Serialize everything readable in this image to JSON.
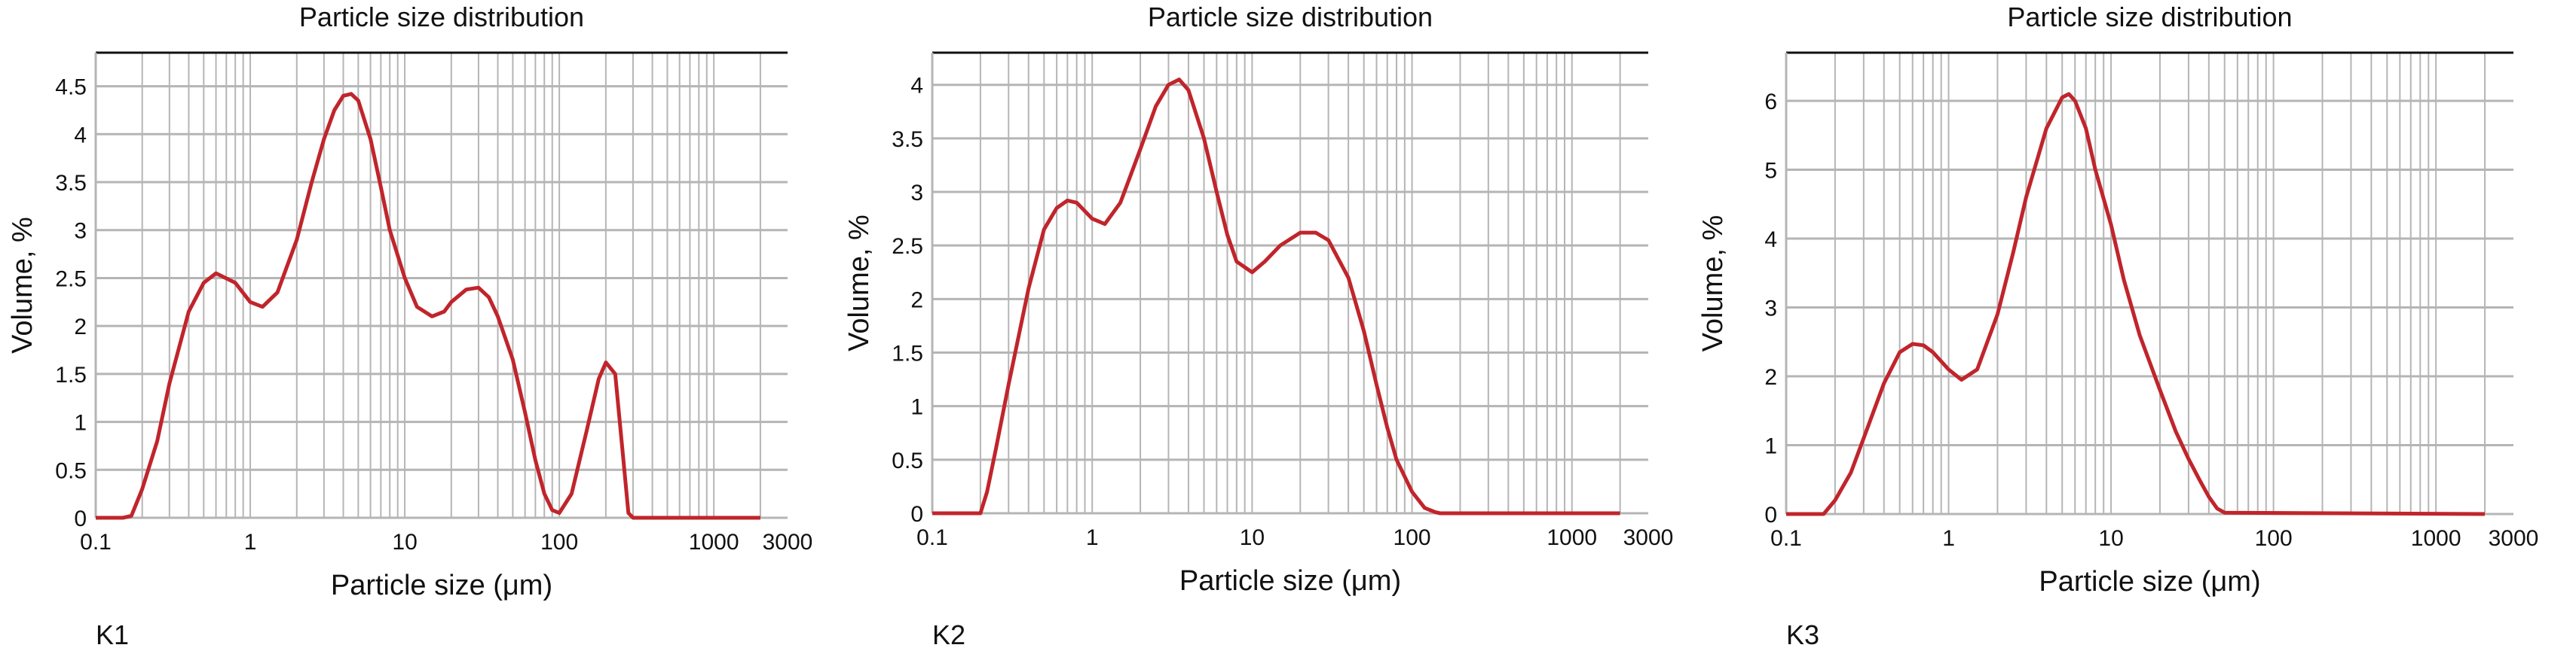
{
  "colors": {
    "series": "#c0252b",
    "grid": "#b5b5b5",
    "frame": "#111111",
    "text": "#111111"
  },
  "chart_data": [
    {
      "type": "line",
      "title": "Particle size distribution",
      "panel_label": "K1",
      "xlabel": "Particle size (μm)",
      "ylabel": "Volume, %",
      "xscale": "log",
      "xlim": [
        0.1,
        3000
      ],
      "ylim": [
        0,
        4.85
      ],
      "xticks": [
        0.1,
        1,
        10,
        100,
        1000,
        3000
      ],
      "xtick_labels": [
        "0.1",
        "1",
        "10",
        "100",
        "1000",
        "3000"
      ],
      "yticks": [
        0,
        0.5,
        1,
        1.5,
        2,
        2.5,
        3,
        3.5,
        4,
        4.5
      ],
      "ytick_labels": [
        "0",
        "0.5",
        "1",
        "1.5",
        "2",
        "2.5",
        "3",
        "3.5",
        "4",
        "4.5"
      ],
      "grid": true,
      "series": [
        {
          "color": "#c0252b",
          "x": [
            0.1,
            0.15,
            0.17,
            0.2,
            0.25,
            0.3,
            0.4,
            0.5,
            0.6,
            0.8,
            1.0,
            1.2,
            1.5,
            2.0,
            2.5,
            3.0,
            3.5,
            4.0,
            4.5,
            5.0,
            6.0,
            7.0,
            8.0,
            10,
            12,
            15,
            18,
            20,
            25,
            30,
            35,
            40,
            50,
            60,
            70,
            80,
            90,
            100,
            120,
            150,
            180,
            200,
            230,
            260,
            280,
            300,
            2000
          ],
          "y": [
            0,
            0,
            0.02,
            0.3,
            0.8,
            1.4,
            2.15,
            2.45,
            2.55,
            2.45,
            2.25,
            2.2,
            2.35,
            2.9,
            3.5,
            3.95,
            4.25,
            4.4,
            4.42,
            4.35,
            3.95,
            3.45,
            3.0,
            2.5,
            2.2,
            2.1,
            2.15,
            2.25,
            2.38,
            2.4,
            2.3,
            2.1,
            1.65,
            1.1,
            0.6,
            0.25,
            0.08,
            0.05,
            0.25,
            0.9,
            1.45,
            1.62,
            1.5,
            0.6,
            0.05,
            0,
            0
          ]
        }
      ]
    },
    {
      "type": "line",
      "title": "Particle size distribution",
      "panel_label": "K2",
      "xlabel": "Particle size (μm)",
      "ylabel": "Volume, %",
      "xscale": "log",
      "xlim": [
        0.1,
        3000
      ],
      "ylim": [
        0,
        4.3
      ],
      "xticks": [
        0.1,
        1,
        10,
        100,
        1000,
        3000
      ],
      "xtick_labels": [
        "0.1",
        "1",
        "10",
        "100",
        "1000",
        "3000"
      ],
      "yticks": [
        0,
        0.5,
        1,
        1.5,
        2,
        2.5,
        3,
        3.5,
        4
      ],
      "ytick_labels": [
        "0",
        "0.5",
        "1",
        "1.5",
        "2",
        "2.5",
        "3",
        "3.5",
        "4"
      ],
      "grid": true,
      "series": [
        {
          "color": "#c0252b",
          "x": [
            0.1,
            0.2,
            0.22,
            0.25,
            0.3,
            0.4,
            0.5,
            0.6,
            0.7,
            0.8,
            1.0,
            1.2,
            1.5,
            2.0,
            2.5,
            3.0,
            3.5,
            4.0,
            5.0,
            6.0,
            7.0,
            8.0,
            10,
            12,
            15,
            20,
            25,
            30,
            40,
            50,
            60,
            70,
            80,
            100,
            120,
            140,
            150,
            160,
            2000
          ],
          "y": [
            0,
            0,
            0.2,
            0.6,
            1.2,
            2.1,
            2.65,
            2.85,
            2.92,
            2.9,
            2.75,
            2.7,
            2.9,
            3.4,
            3.8,
            4.0,
            4.05,
            3.95,
            3.5,
            3.0,
            2.6,
            2.35,
            2.25,
            2.35,
            2.5,
            2.62,
            2.62,
            2.55,
            2.2,
            1.7,
            1.2,
            0.8,
            0.5,
            0.2,
            0.05,
            0.01,
            0,
            0,
            0
          ]
        }
      ]
    },
    {
      "type": "line",
      "title": "Particle size distribution",
      "panel_label": "K3",
      "xlabel": "Particle size (μm)",
      "ylabel": "Volume, %",
      "xscale": "log",
      "xlim": [
        0.1,
        3000
      ],
      "ylim": [
        0,
        6.7
      ],
      "xticks": [
        0.1,
        1,
        10,
        100,
        1000,
        3000
      ],
      "xtick_labels": [
        "0.1",
        "1",
        "10",
        "100",
        "1000",
        "3000"
      ],
      "yticks": [
        0,
        1,
        2,
        3,
        4,
        5,
        6
      ],
      "ytick_labels": [
        "0",
        "1",
        "2",
        "3",
        "4",
        "5",
        "6"
      ],
      "grid": true,
      "series": [
        {
          "color": "#c0252b",
          "x": [
            0.1,
            0.17,
            0.2,
            0.25,
            0.3,
            0.4,
            0.5,
            0.6,
            0.7,
            0.8,
            1.0,
            1.2,
            1.5,
            2.0,
            2.5,
            3.0,
            4.0,
            5.0,
            5.5,
            6.0,
            7.0,
            8.0,
            10,
            12,
            15,
            20,
            25,
            30,
            35,
            40,
            45,
            50,
            2000
          ],
          "y": [
            0,
            0,
            0.2,
            0.6,
            1.1,
            1.9,
            2.35,
            2.47,
            2.45,
            2.35,
            2.1,
            1.95,
            2.1,
            2.9,
            3.8,
            4.6,
            5.6,
            6.05,
            6.1,
            6.0,
            5.6,
            5.0,
            4.2,
            3.4,
            2.6,
            1.8,
            1.2,
            0.8,
            0.5,
            0.25,
            0.08,
            0.02,
            0
          ]
        }
      ]
    }
  ]
}
